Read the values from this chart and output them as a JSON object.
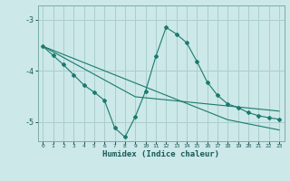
{
  "xlabel": "Humidex (Indice chaleur)",
  "bg_color": "#cce8e8",
  "grid_color": "#aacece",
  "line_color": "#1a7a6e",
  "xlim": [
    -0.5,
    23.5
  ],
  "ylim": [
    -5.38,
    -2.72
  ],
  "yticks": [
    -5,
    -4,
    -3
  ],
  "xticks": [
    0,
    1,
    2,
    3,
    4,
    5,
    6,
    7,
    8,
    9,
    10,
    11,
    12,
    13,
    14,
    15,
    16,
    17,
    18,
    19,
    20,
    21,
    22,
    23
  ],
  "trend1_x": [
    0,
    1,
    2,
    3,
    4,
    5,
    6,
    7,
    8,
    9,
    10,
    11,
    12,
    13,
    14,
    15,
    16,
    17,
    18,
    19,
    20,
    21,
    22,
    23
  ],
  "trend1_y": [
    -3.52,
    -3.6,
    -3.68,
    -3.76,
    -3.84,
    -3.92,
    -4.0,
    -4.08,
    -4.16,
    -4.24,
    -4.32,
    -4.4,
    -4.48,
    -4.56,
    -4.64,
    -4.72,
    -4.8,
    -4.88,
    -4.96,
    -5.0,
    -5.04,
    -5.08,
    -5.12,
    -5.16
  ],
  "trend2_x": [
    0,
    1,
    2,
    3,
    4,
    5,
    6,
    7,
    8,
    9,
    10,
    11,
    12,
    13,
    14,
    15,
    16,
    17,
    18,
    19,
    20,
    21,
    22,
    23
  ],
  "trend2_y": [
    -3.52,
    -3.63,
    -3.74,
    -3.85,
    -3.96,
    -4.07,
    -4.18,
    -4.29,
    -4.4,
    -4.51,
    -4.53,
    -4.55,
    -4.57,
    -4.59,
    -4.61,
    -4.63,
    -4.65,
    -4.67,
    -4.69,
    -4.71,
    -4.73,
    -4.75,
    -4.77,
    -4.79
  ],
  "jagged_x": [
    0,
    1,
    2,
    3,
    4,
    5,
    6,
    7,
    8,
    9,
    10,
    11,
    12,
    13,
    14,
    15,
    16,
    17,
    18,
    19,
    20,
    21,
    22,
    23
  ],
  "jagged_y": [
    -3.52,
    -3.7,
    -3.88,
    -4.08,
    -4.28,
    -4.42,
    -4.58,
    -5.12,
    -5.3,
    -4.9,
    -4.4,
    -3.72,
    -3.15,
    -3.28,
    -3.45,
    -3.82,
    -4.22,
    -4.48,
    -4.65,
    -4.72,
    -4.82,
    -4.88,
    -4.92,
    -4.95
  ]
}
